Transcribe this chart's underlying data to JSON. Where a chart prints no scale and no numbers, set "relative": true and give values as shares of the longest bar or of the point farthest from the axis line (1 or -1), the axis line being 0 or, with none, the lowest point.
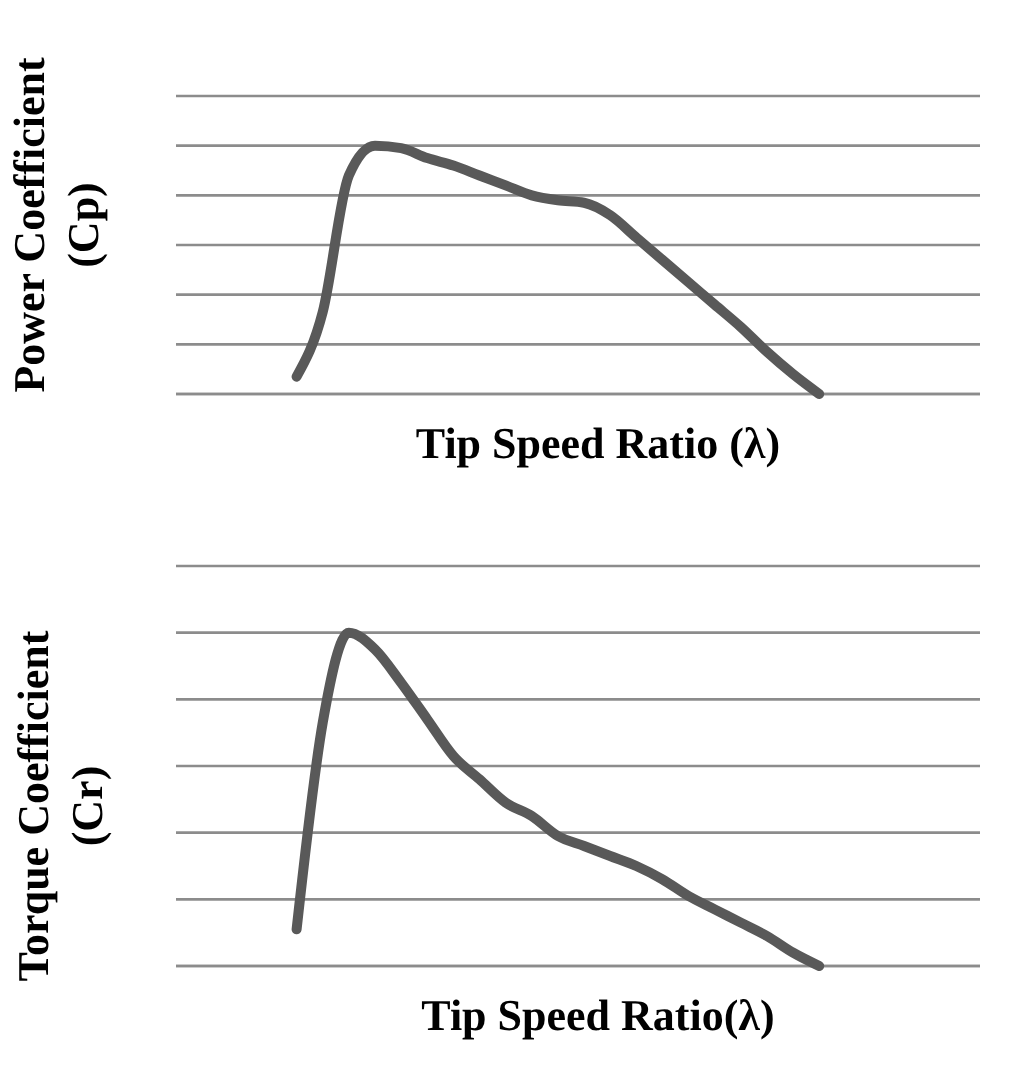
{
  "chart_data": [
    {
      "type": "line",
      "relative": true,
      "xlabel": "Tip Speed Ratio (λ)",
      "ylabel": "Power Coefficient (Cp)",
      "grid": "y",
      "categories": [
        null,
        null,
        null,
        null,
        null,
        null,
        null,
        null,
        null,
        null,
        null,
        null,
        null,
        null,
        null,
        null,
        null,
        null,
        null,
        null,
        null
      ],
      "series": [
        {
          "color": "#595959",
          "values": [
            0.07,
            0.33,
            0.88,
            1,
            0.99,
            0.95,
            0.92,
            0.88,
            0.84,
            0.8,
            0.78,
            0.77,
            0.72,
            0.63,
            0.54,
            0.45,
            0.36,
            0.27,
            0.17,
            0.08,
            0
          ]
        }
      ]
    },
    {
      "type": "line",
      "relative": true,
      "xlabel": "Tip Speed Ratio(λ)",
      "ylabel": "Torque Coefficient (Cr)",
      "grid": "y",
      "categories": [
        null,
        null,
        null,
        null,
        null,
        null,
        null,
        null,
        null,
        null,
        null,
        null,
        null,
        null,
        null,
        null,
        null,
        null,
        null,
        null,
        null
      ],
      "series": [
        {
          "color": "#595959",
          "values": [
            0.11,
            0.73,
            1,
            0.95,
            0.85,
            0.74,
            0.63,
            0.56,
            0.49,
            0.45,
            0.39,
            0.36,
            0.33,
            0.3,
            0.26,
            0.21,
            0.17,
            0.13,
            0.09,
            0.04,
            0
          ]
        }
      ]
    }
  ]
}
